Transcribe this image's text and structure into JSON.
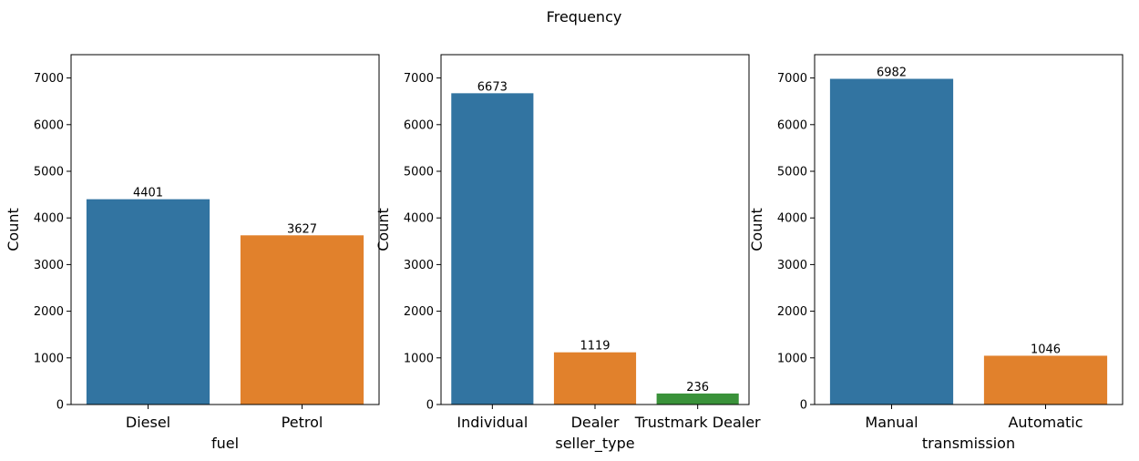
{
  "figure_title": "Frequency",
  "chart_data": [
    {
      "type": "bar",
      "categories": [
        "Diesel",
        "Petrol"
      ],
      "values": [
        4401,
        3627
      ],
      "colors": [
        "#3274a1",
        "#e1812c"
      ],
      "title": "",
      "xlabel": "fuel",
      "ylabel": "Count",
      "ylim": [
        0,
        7500
      ],
      "yticks": [
        0,
        1000,
        2000,
        3000,
        4000,
        5000,
        6000,
        7000
      ],
      "grid": false,
      "data_labels": true
    },
    {
      "type": "bar",
      "categories": [
        "Individual",
        "Dealer",
        "Trustmark Dealer"
      ],
      "values": [
        6673,
        1119,
        236
      ],
      "colors": [
        "#3274a1",
        "#e1812c",
        "#3a923a"
      ],
      "title": "",
      "xlabel": "seller_type",
      "ylabel": "Count",
      "ylim": [
        0,
        7500
      ],
      "yticks": [
        0,
        1000,
        2000,
        3000,
        4000,
        5000,
        6000,
        7000
      ],
      "grid": false,
      "data_labels": true
    },
    {
      "type": "bar",
      "categories": [
        "Manual",
        "Automatic"
      ],
      "values": [
        6982,
        1046
      ],
      "colors": [
        "#3274a1",
        "#e1812c"
      ],
      "title": "",
      "xlabel": "transmission",
      "ylabel": "Count",
      "ylim": [
        0,
        7500
      ],
      "yticks": [
        0,
        1000,
        2000,
        3000,
        4000,
        5000,
        6000,
        7000
      ],
      "grid": false,
      "data_labels": true
    }
  ]
}
